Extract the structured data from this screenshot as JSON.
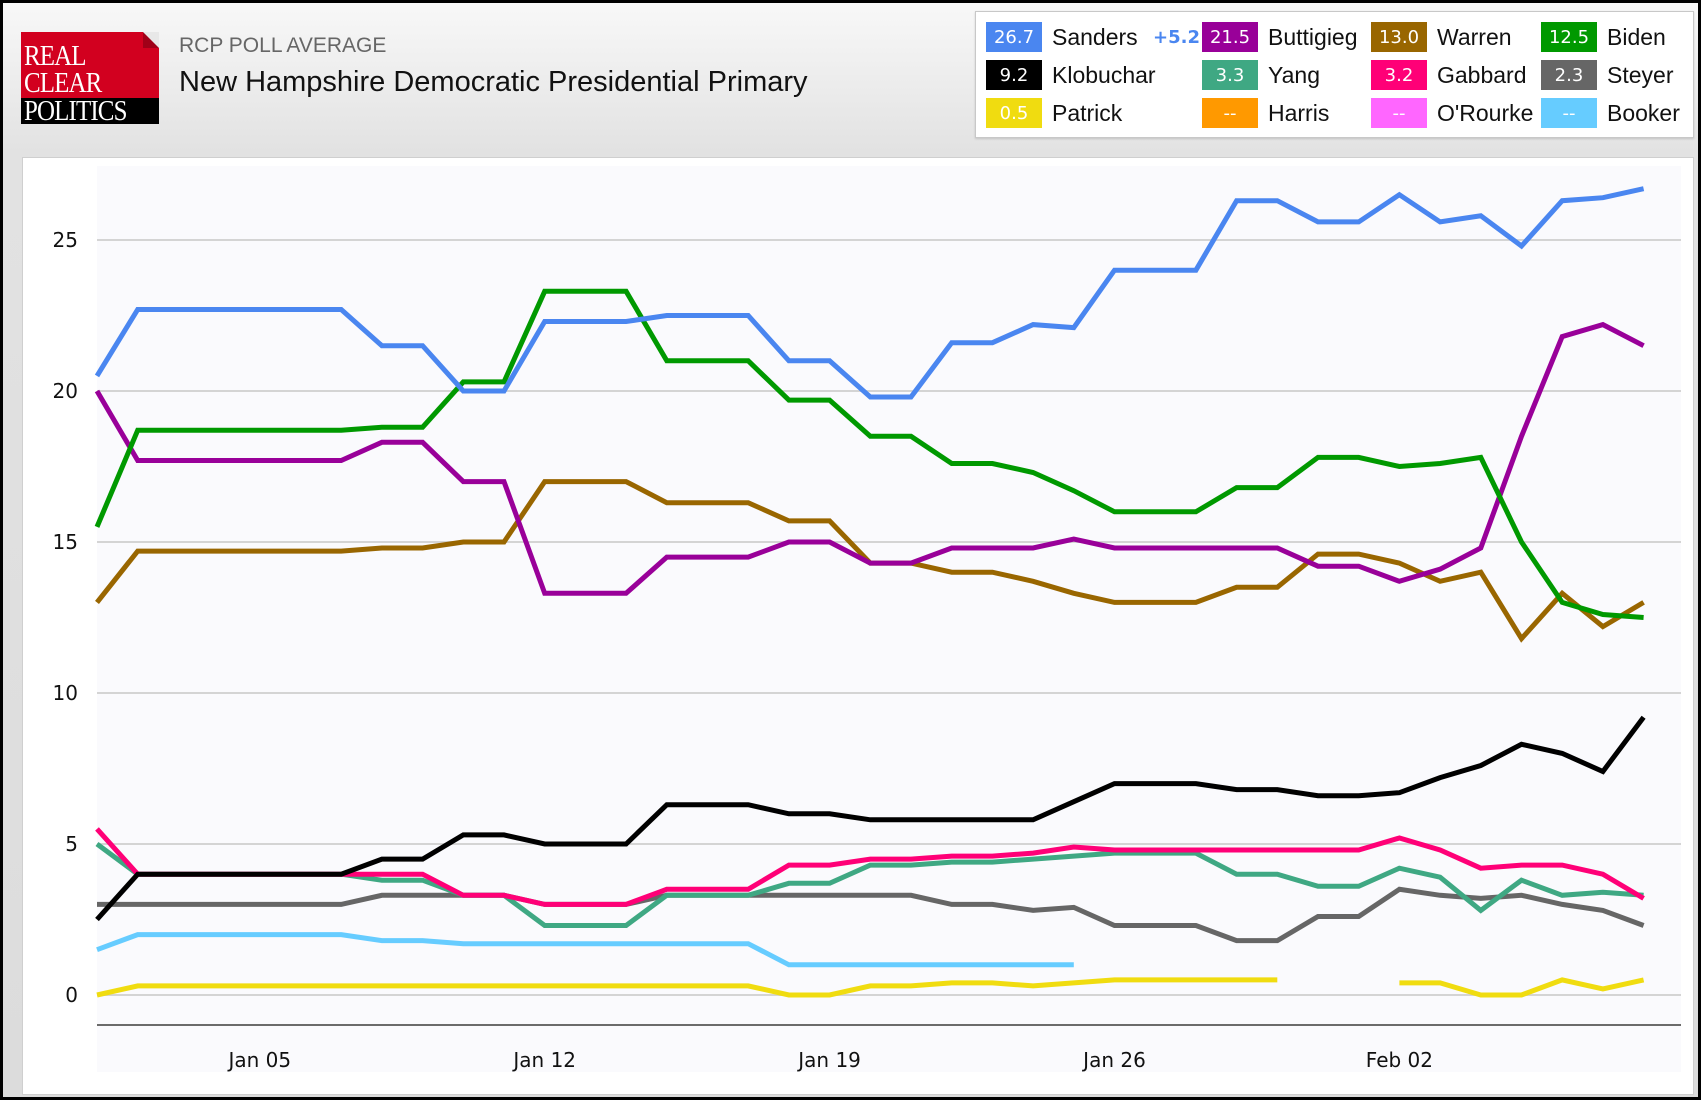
{
  "header": {
    "logo": [
      "REAL",
      "CLEAR",
      "POLITICS"
    ],
    "subtitle": "RCP POLL AVERAGE",
    "title": "New Hampshire Democratic Presidential Primary"
  },
  "legend": {
    "items": [
      {
        "name": "Sanders",
        "value": "26.7",
        "color": "#4a86f0",
        "change": "+5.2"
      },
      {
        "name": "Buttigieg",
        "value": "21.5",
        "color": "#990099"
      },
      {
        "name": "Warren",
        "value": "13.0",
        "color": "#996600"
      },
      {
        "name": "Biden",
        "value": "12.5",
        "color": "#009900"
      },
      {
        "name": "Klobuchar",
        "value": "9.2",
        "color": "#000000"
      },
      {
        "name": "Yang",
        "value": "3.3",
        "color": "#3fa883"
      },
      {
        "name": "Gabbard",
        "value": "3.2",
        "color": "#ff0077"
      },
      {
        "name": "Steyer",
        "value": "2.3",
        "color": "#666666"
      },
      {
        "name": "Patrick",
        "value": "0.5",
        "color": "#f0dc10"
      },
      {
        "name": "Harris",
        "value": "--",
        "color": "#ff9900"
      },
      {
        "name": "O'Rourke",
        "value": "--",
        "color": "#ff66ff"
      },
      {
        "name": "Booker",
        "value": "--",
        "color": "#66ccff"
      }
    ]
  },
  "chart_data": {
    "type": "line",
    "title": "New Hampshire Democratic Presidential Primary",
    "xlabel": "",
    "ylabel": "",
    "ylim": [
      0,
      27
    ],
    "yticks": [
      0,
      5,
      10,
      15,
      20,
      25
    ],
    "grid": true,
    "legend_position": "top-right",
    "x": [
      "Jan 01",
      "Jan 02",
      "Jan 03",
      "Jan 04",
      "Jan 05",
      "Jan 06",
      "Jan 07",
      "Jan 08",
      "Jan 09",
      "Jan 10",
      "Jan 11",
      "Jan 12",
      "Jan 13",
      "Jan 14",
      "Jan 15",
      "Jan 16",
      "Jan 17",
      "Jan 18",
      "Jan 19",
      "Jan 20",
      "Jan 21",
      "Jan 22",
      "Jan 23",
      "Jan 24",
      "Jan 25",
      "Jan 26",
      "Jan 27",
      "Jan 28",
      "Jan 29",
      "Jan 30",
      "Jan 31",
      "Feb 01",
      "Feb 02",
      "Feb 03",
      "Feb 04",
      "Feb 05",
      "Feb 06",
      "Feb 07",
      "Feb 08"
    ],
    "xticks": [
      {
        "label": "Jan 05",
        "index": 4
      },
      {
        "label": "Jan 12",
        "index": 11
      },
      {
        "label": "Jan 19",
        "index": 18
      },
      {
        "label": "Jan 26",
        "index": 25
      },
      {
        "label": "Feb 02",
        "index": 32
      }
    ],
    "series": [
      {
        "name": "Booker",
        "color": "#66ccff",
        "values": [
          1.5,
          2.0,
          2.0,
          2.0,
          2.0,
          2.0,
          2.0,
          1.8,
          1.8,
          1.7,
          1.7,
          1.7,
          1.7,
          1.7,
          1.7,
          1.7,
          1.7,
          1.0,
          1.0,
          1.0,
          1.0,
          1.0,
          1.0,
          1.0,
          1.0,
          null,
          null,
          null,
          null,
          null,
          null,
          null,
          null,
          null,
          null,
          null,
          null,
          null,
          null
        ]
      },
      {
        "name": "Patrick",
        "color": "#f0dc10",
        "values": [
          0.0,
          0.3,
          0.3,
          0.3,
          0.3,
          0.3,
          0.3,
          0.3,
          0.3,
          0.3,
          0.3,
          0.3,
          0.3,
          0.3,
          0.3,
          0.3,
          0.3,
          0.0,
          0.0,
          0.3,
          0.3,
          0.4,
          0.4,
          0.3,
          0.4,
          0.5,
          0.5,
          0.5,
          0.5,
          0.5,
          null,
          null,
          0.4,
          0.4,
          0.0,
          0.0,
          0.5,
          0.2,
          0.5
        ]
      },
      {
        "name": "Steyer",
        "color": "#666666",
        "values": [
          3.0,
          3.0,
          3.0,
          3.0,
          3.0,
          3.0,
          3.0,
          3.3,
          3.3,
          3.3,
          3.3,
          3.0,
          3.0,
          3.0,
          3.3,
          3.3,
          3.3,
          3.3,
          3.3,
          3.3,
          3.3,
          3.0,
          3.0,
          2.8,
          2.9,
          2.3,
          2.3,
          2.3,
          1.8,
          1.8,
          2.6,
          2.6,
          3.5,
          3.3,
          3.2,
          3.3,
          3.0,
          2.8,
          2.3
        ]
      },
      {
        "name": "Yang",
        "color": "#3fa883",
        "values": [
          5.0,
          4.0,
          4.0,
          4.0,
          4.0,
          4.0,
          4.0,
          3.8,
          3.8,
          3.3,
          3.3,
          2.3,
          2.3,
          2.3,
          3.3,
          3.3,
          3.3,
          3.7,
          3.7,
          4.3,
          4.3,
          4.4,
          4.4,
          4.5,
          4.6,
          4.7,
          4.7,
          4.7,
          4.0,
          4.0,
          3.6,
          3.6,
          4.2,
          3.9,
          2.8,
          3.8,
          3.3,
          3.4,
          3.3
        ]
      },
      {
        "name": "Gabbard",
        "color": "#ff0077",
        "values": [
          5.5,
          4.0,
          4.0,
          4.0,
          4.0,
          4.0,
          4.0,
          4.0,
          4.0,
          3.3,
          3.3,
          3.0,
          3.0,
          3.0,
          3.5,
          3.5,
          3.5,
          4.3,
          4.3,
          4.5,
          4.5,
          4.6,
          4.6,
          4.7,
          4.9,
          4.8,
          4.8,
          4.8,
          4.8,
          4.8,
          4.8,
          4.8,
          5.2,
          4.8,
          4.2,
          4.3,
          4.3,
          4.0,
          3.2
        ]
      },
      {
        "name": "Klobuchar",
        "color": "#000000",
        "values": [
          2.5,
          4.0,
          4.0,
          4.0,
          4.0,
          4.0,
          4.0,
          4.5,
          4.5,
          5.3,
          5.3,
          5.0,
          5.0,
          5.0,
          6.3,
          6.3,
          6.3,
          6.0,
          6.0,
          5.8,
          5.8,
          5.8,
          5.8,
          5.8,
          6.4,
          7.0,
          7.0,
          7.0,
          6.8,
          6.8,
          6.6,
          6.6,
          6.7,
          7.2,
          7.6,
          8.3,
          8.0,
          7.4,
          9.2
        ]
      },
      {
        "name": "Warren",
        "color": "#996600",
        "values": [
          13.0,
          14.7,
          14.7,
          14.7,
          14.7,
          14.7,
          14.7,
          14.8,
          14.8,
          15.0,
          15.0,
          17.0,
          17.0,
          17.0,
          16.3,
          16.3,
          16.3,
          15.7,
          15.7,
          14.3,
          14.3,
          14.0,
          14.0,
          13.7,
          13.3,
          13.0,
          13.0,
          13.0,
          13.5,
          13.5,
          14.6,
          14.6,
          14.3,
          13.7,
          14.0,
          11.8,
          13.3,
          12.2,
          13.0
        ]
      },
      {
        "name": "Buttigieg",
        "color": "#990099",
        "values": [
          20.0,
          17.7,
          17.7,
          17.7,
          17.7,
          17.7,
          17.7,
          18.3,
          18.3,
          17.0,
          17.0,
          13.3,
          13.3,
          13.3,
          14.5,
          14.5,
          14.5,
          15.0,
          15.0,
          14.3,
          14.3,
          14.8,
          14.8,
          14.8,
          15.1,
          14.8,
          14.8,
          14.8,
          14.8,
          14.8,
          14.2,
          14.2,
          13.7,
          14.1,
          14.8,
          18.5,
          21.8,
          22.2,
          21.5
        ]
      },
      {
        "name": "Biden",
        "color": "#009900",
        "values": [
          15.5,
          18.7,
          18.7,
          18.7,
          18.7,
          18.7,
          18.7,
          18.8,
          18.8,
          20.3,
          20.3,
          23.3,
          23.3,
          23.3,
          21.0,
          21.0,
          21.0,
          19.7,
          19.7,
          18.5,
          18.5,
          17.6,
          17.6,
          17.3,
          16.7,
          16.0,
          16.0,
          16.0,
          16.8,
          16.8,
          17.8,
          17.8,
          17.5,
          17.6,
          17.8,
          15.0,
          13.0,
          12.6,
          12.5
        ]
      },
      {
        "name": "Sanders",
        "color": "#4a86f0",
        "values": [
          20.5,
          22.7,
          22.7,
          22.7,
          22.7,
          22.7,
          22.7,
          21.5,
          21.5,
          20.0,
          20.0,
          22.3,
          22.3,
          22.3,
          22.5,
          22.5,
          22.5,
          21.0,
          21.0,
          19.8,
          19.8,
          21.6,
          21.6,
          22.2,
          22.1,
          24.0,
          24.0,
          24.0,
          26.3,
          26.3,
          25.6,
          25.6,
          26.5,
          25.6,
          25.8,
          24.8,
          26.3,
          26.4,
          26.7
        ]
      }
    ]
  }
}
